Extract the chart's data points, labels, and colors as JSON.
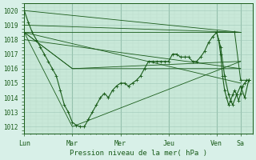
{
  "xlabel": "Pression niveau de la mer( hPa )",
  "bg_color": "#d8f0e8",
  "plot_bg_color": "#c8e8d8",
  "line_color": "#1a5c1a",
  "ylim": [
    1011.5,
    1020.5
  ],
  "days": [
    "Lun",
    "Mar",
    "Mer",
    "Jeu",
    "Ven",
    "Sa"
  ],
  "day_positions": [
    0,
    48,
    96,
    144,
    192,
    216
  ],
  "total_hours": 228,
  "yticks": [
    1012,
    1013,
    1014,
    1015,
    1016,
    1017,
    1018,
    1019,
    1020
  ],
  "fan_lines": [
    [
      [
        0,
        216
      ],
      [
        1020,
        1018.5
      ]
    ],
    [
      [
        0,
        216
      ],
      [
        1019,
        1018.5
      ]
    ],
    [
      [
        0,
        216
      ],
      [
        1018.5,
        1018.5
      ]
    ],
    [
      [
        0,
        48,
        216
      ],
      [
        1018.5,
        1012,
        1016.5
      ]
    ],
    [
      [
        0,
        48,
        216
      ],
      [
        1018.5,
        1016,
        1016.5
      ]
    ],
    [
      [
        0,
        48,
        216
      ],
      [
        1018.5,
        1016,
        1016
      ]
    ],
    [
      [
        0,
        216
      ],
      [
        1018,
        1016
      ]
    ],
    [
      [
        0,
        216
      ],
      [
        1018.5,
        1015
      ]
    ]
  ],
  "main_x": [
    0,
    4,
    8,
    12,
    16,
    20,
    24,
    28,
    32,
    36,
    40,
    44,
    48,
    52,
    56,
    60,
    64,
    68,
    72,
    76,
    80,
    84,
    88,
    92,
    96,
    100,
    104,
    108,
    112,
    116,
    120,
    124,
    128,
    132,
    136,
    140,
    144,
    148,
    152,
    156,
    160,
    164,
    168,
    172,
    176,
    180,
    184,
    188,
    192,
    196,
    200,
    204,
    208,
    212,
    216,
    220,
    224
  ],
  "main_y": [
    1020,
    1019.2,
    1018.5,
    1018,
    1017.5,
    1017,
    1016.5,
    1016,
    1015.5,
    1014.5,
    1013.5,
    1013,
    1012.3,
    1012.1,
    1012,
    1012,
    1012.5,
    1013,
    1013.5,
    1014,
    1014.3,
    1014,
    1014.5,
    1014.8,
    1015,
    1015,
    1014.8,
    1015,
    1015.2,
    1015.5,
    1016,
    1016.5,
    1016.5,
    1016.5,
    1016.5,
    1016.5,
    1016.5,
    1017,
    1017,
    1016.8,
    1016.8,
    1016.8,
    1016.5,
    1016.5,
    1016.8,
    1017.2,
    1017.8,
    1018.2,
    1018.5,
    1017.5,
    1015.5,
    1014.2,
    1013.5,
    1014.2,
    1014.8,
    1014.0,
    1015.2
  ],
  "ven_detail_x": [
    192,
    194,
    196,
    198,
    200,
    202,
    204,
    206,
    208,
    210,
    212,
    214,
    216,
    218,
    220,
    222,
    224
  ],
  "ven_detail_y": [
    1018.5,
    1018,
    1017,
    1015.5,
    1014.5,
    1014,
    1013.5,
    1013.8,
    1014.2,
    1014.5,
    1014.2,
    1013.8,
    1014.3,
    1014.8,
    1015,
    1015.2,
    1015.2
  ],
  "top_line_x": [
    192,
    210,
    216,
    224
  ],
  "top_line_y": [
    1018.5,
    1018.5,
    1015.2,
    1015.2
  ]
}
